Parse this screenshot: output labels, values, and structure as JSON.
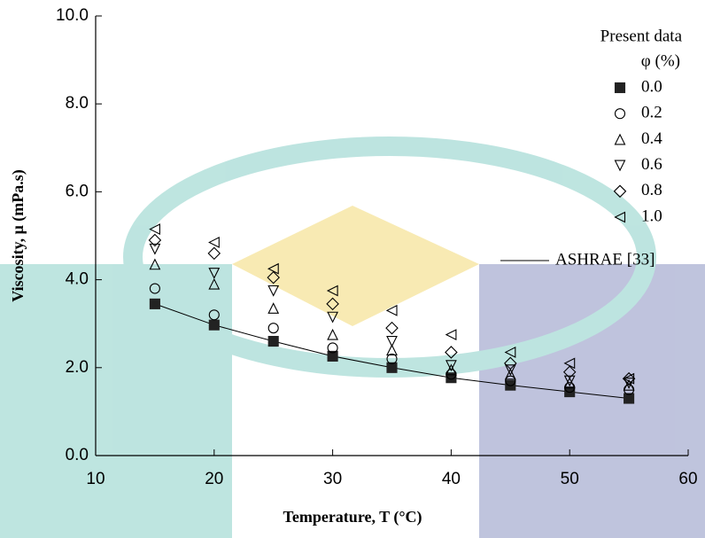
{
  "chart_data": {
    "type": "scatter",
    "x_label": "Temperature, T (°C)",
    "y_label": "Viscosity, μ (mPa.s)",
    "legend_title": "Present data",
    "legend_subtitle": "φ (%)",
    "legend_position": "upper right",
    "xlim": [
      10,
      60
    ],
    "xticks": [
      10,
      20,
      30,
      40,
      50,
      60
    ],
    "ylim": [
      0,
      10
    ],
    "yticks": [
      {
        "value": 0,
        "label": "0.0"
      },
      {
        "value": 2,
        "label": "2.0"
      },
      {
        "value": 4,
        "label": "4.0"
      },
      {
        "value": 6,
        "label": "6.0"
      },
      {
        "value": 8,
        "label": "8.0"
      },
      {
        "value": 10,
        "label": "10.0"
      }
    ],
    "series": [
      {
        "name": "0.0",
        "color": "#222222",
        "marker": "square",
        "x": [
          15,
          20,
          25,
          30,
          35,
          40,
          45,
          50,
          55
        ],
        "values": [
          3.45,
          2.97,
          2.6,
          2.26,
          2.0,
          1.77,
          1.6,
          1.45,
          1.3
        ]
      },
      {
        "name": "0.2",
        "color": "#000000",
        "marker": "circle",
        "x": [
          15,
          20,
          25,
          30,
          35,
          40,
          45,
          50,
          55
        ],
        "values": [
          3.8,
          3.2,
          2.9,
          2.45,
          2.2,
          1.85,
          1.7,
          1.55,
          1.5
        ]
      },
      {
        "name": "0.4",
        "color": "#000000",
        "marker": "triangle-up",
        "x": [
          15,
          20,
          25,
          30,
          35,
          40,
          45,
          50,
          55
        ],
        "values": [
          4.35,
          3.9,
          3.35,
          2.75,
          2.4,
          1.95,
          1.85,
          1.65,
          1.6
        ]
      },
      {
        "name": "0.6",
        "color": "#000000",
        "marker": "triangle-down",
        "x": [
          15,
          20,
          25,
          30,
          35,
          40,
          45,
          50,
          55
        ],
        "values": [
          4.7,
          4.15,
          3.75,
          3.15,
          2.6,
          2.05,
          1.95,
          1.7,
          1.65
        ]
      },
      {
        "name": "0.8",
        "color": "#000000",
        "marker": "diamond",
        "x": [
          15,
          20,
          25,
          30,
          35,
          40,
          45,
          50,
          55
        ],
        "values": [
          4.9,
          4.6,
          4.05,
          3.45,
          2.9,
          2.35,
          2.1,
          1.9,
          1.75
        ]
      },
      {
        "name": "1.0",
        "color": "#000000",
        "marker": "triangle-left",
        "x": [
          15,
          20,
          25,
          30,
          35,
          40,
          45,
          50,
          55
        ],
        "values": [
          5.15,
          4.85,
          4.25,
          3.75,
          3.3,
          2.75,
          2.35,
          2.1,
          1.75
        ]
      }
    ],
    "reference_line": {
      "name": "ASHRAE [33]",
      "color": "#000000",
      "x": [
        15,
        20,
        25,
        30,
        35,
        40,
        45,
        50,
        55
      ],
      "values": [
        3.45,
        2.97,
        2.6,
        2.26,
        2.0,
        1.77,
        1.6,
        1.45,
        1.3
      ]
    }
  }
}
